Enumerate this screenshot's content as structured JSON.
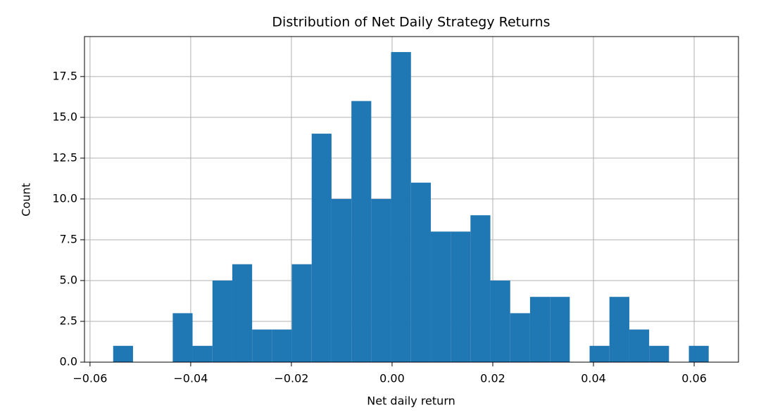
{
  "chart_data": {
    "type": "histogram",
    "title": "Distribution of Net Daily Strategy Returns",
    "x_label": "Net daily return",
    "y_label": "Count",
    "color": "#1f77b4",
    "grid": true,
    "bins": [
      -0.0554,
      -0.05146,
      -0.04751,
      -0.04357,
      -0.03963,
      -0.03568,
      -0.03174,
      -0.0278,
      -0.02386,
      -0.01991,
      -0.01597,
      -0.01203,
      -0.00808,
      -0.00414,
      -0.0002,
      0.00375,
      0.00769,
      0.01163,
      0.01557,
      0.01952,
      0.02346,
      0.0274,
      0.03135,
      0.03529,
      0.03923,
      0.04317,
      0.04712,
      0.05106,
      0.055,
      0.05895,
      0.06289
    ],
    "counts": [
      1,
      0,
      0,
      3,
      1,
      5,
      6,
      2,
      2,
      6,
      14,
      10,
      16,
      10,
      19,
      11,
      8,
      8,
      9,
      5,
      3,
      4,
      4,
      0,
      1,
      4,
      2,
      1,
      0,
      1
    ],
    "xlim": [
      -0.0611,
      0.0688
    ],
    "ylim": [
      0,
      19.95
    ],
    "xticks": [
      {
        "value": -0.06,
        "label": "−0.06"
      },
      {
        "value": -0.04,
        "label": "−0.04"
      },
      {
        "value": -0.02,
        "label": "−0.02"
      },
      {
        "value": 0,
        "label": "0.00"
      },
      {
        "value": 0.02,
        "label": "0.02"
      },
      {
        "value": 0.04,
        "label": "0.04"
      },
      {
        "value": 0.06,
        "label": "0.06"
      }
    ],
    "yticks": [
      {
        "value": 0,
        "label": "0.0"
      },
      {
        "value": 2.5,
        "label": "2.5"
      },
      {
        "value": 5,
        "label": "5.0"
      },
      {
        "value": 7.5,
        "label": "7.5"
      },
      {
        "value": 10,
        "label": "10.0"
      },
      {
        "value": 12.5,
        "label": "12.5"
      },
      {
        "value": 15,
        "label": "15.0"
      },
      {
        "value": 17.5,
        "label": "17.5"
      }
    ]
  }
}
